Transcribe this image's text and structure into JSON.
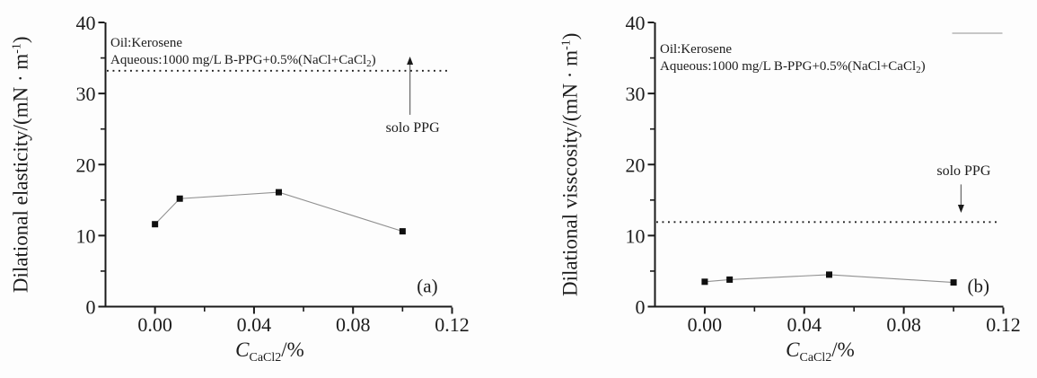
{
  "figure": {
    "description": "Two-panel line figure: interfacial dilational properties vs CaCl2 concentration",
    "background": "#fdfdfd"
  },
  "colors": {
    "text": "#1c1c1c",
    "axis": "#1a1a1a",
    "marker": "#0f0f0f",
    "series_line": "#909090",
    "reference_line": "#1c1c1c",
    "arrow_line": "#666666",
    "legend_fragment": "#b5b5b5"
  },
  "chart_data": [
    {
      "type": "line",
      "panel_label": "(a)",
      "title": "",
      "xlabel": "C_CaCl2/%",
      "ylabel": "Dilational elasticity/(mN · m⁻¹)",
      "xlabel_parts": {
        "var": "C",
        "sub": "CaCl2",
        "rest": "/%"
      },
      "ylabel_parts": {
        "main": "Dilational elasticity/(mN · m",
        "sup": "-1",
        "close": ")"
      },
      "xlim": [
        -0.02,
        0.12
      ],
      "ylim": [
        0,
        40
      ],
      "grid": false,
      "x_major_ticks": [
        0,
        0.04,
        0.08,
        0.12
      ],
      "x_major_tick_labels": [
        "0.00",
        "0.04",
        "0.08",
        "0.12"
      ],
      "x_minor_ticks": [
        0.02,
        0.06,
        0.1
      ],
      "y_major_ticks": [
        0,
        10,
        20,
        30,
        40
      ],
      "y_major_tick_labels": [
        "0",
        "10",
        "20",
        "30",
        "40"
      ],
      "y_minor_ticks": [
        5,
        15,
        25,
        35
      ],
      "series": [
        {
          "name": "B-PPG + 0.5%(NaCl+CaCl2)",
          "x": [
            0.0,
            0.01,
            0.05,
            0.1
          ],
          "y": [
            11.6,
            15.2,
            16.1,
            10.6
          ],
          "marker": "filled-square"
        }
      ],
      "reference_line": {
        "value": 33.2,
        "style": "dotted",
        "label": "solo PPG",
        "arrow": "up"
      },
      "annotation": {
        "line1": "Oil:Kerosene",
        "line2": "Aqueous:1000 mg/L B-PPG+0.5%(NaCl+CaCl2)",
        "line2_parts": {
          "main": "Aqueous:1000 mg/L B-PPG+0.5%(NaCl+CaCl",
          "sub": "2",
          "close": ")"
        }
      },
      "legend_fragment": false
    },
    {
      "type": "line",
      "panel_label": "(b)",
      "title": "",
      "xlabel": "C_CaCl2/%",
      "ylabel": "Dilational visscosity/(mN · m⁻¹)",
      "xlabel_parts": {
        "var": "C",
        "sub": "CaCl2",
        "rest": "/%"
      },
      "ylabel_parts": {
        "main": "Dilational visscosity/(mN · m",
        "sup": "-1",
        "close": ")"
      },
      "xlim": [
        -0.02,
        0.12
      ],
      "ylim": [
        0,
        40
      ],
      "grid": false,
      "x_major_ticks": [
        0,
        0.04,
        0.08,
        0.12
      ],
      "x_major_tick_labels": [
        "0.00",
        "0.04",
        "0.08",
        "0.12"
      ],
      "x_minor_ticks": [
        0.02,
        0.06,
        0.1
      ],
      "y_major_ticks": [
        0,
        10,
        20,
        30,
        40
      ],
      "y_major_tick_labels": [
        "0",
        "10",
        "20",
        "30",
        "40"
      ],
      "y_minor_ticks": [
        5,
        15,
        25,
        35
      ],
      "series": [
        {
          "name": "B-PPG + 0.5%(NaCl+CaCl2)",
          "x": [
            0.0,
            0.01,
            0.05,
            0.1
          ],
          "y": [
            3.5,
            3.8,
            4.5,
            3.4
          ],
          "marker": "filled-square"
        }
      ],
      "reference_line": {
        "value": 11.9,
        "style": "dotted",
        "label": "solo PPG",
        "arrow": "down"
      },
      "annotation": {
        "line1": "Oil:Kerosene",
        "line2": "Aqueous:1000 mg/L B-PPG+0.5%(NaCl+CaCl2)",
        "line2_parts": {
          "main": "Aqueous:1000 mg/L B-PPG+0.5%(NaCl+CaCl",
          "sub": "2",
          "close": ")"
        }
      },
      "legend_fragment": true
    }
  ]
}
